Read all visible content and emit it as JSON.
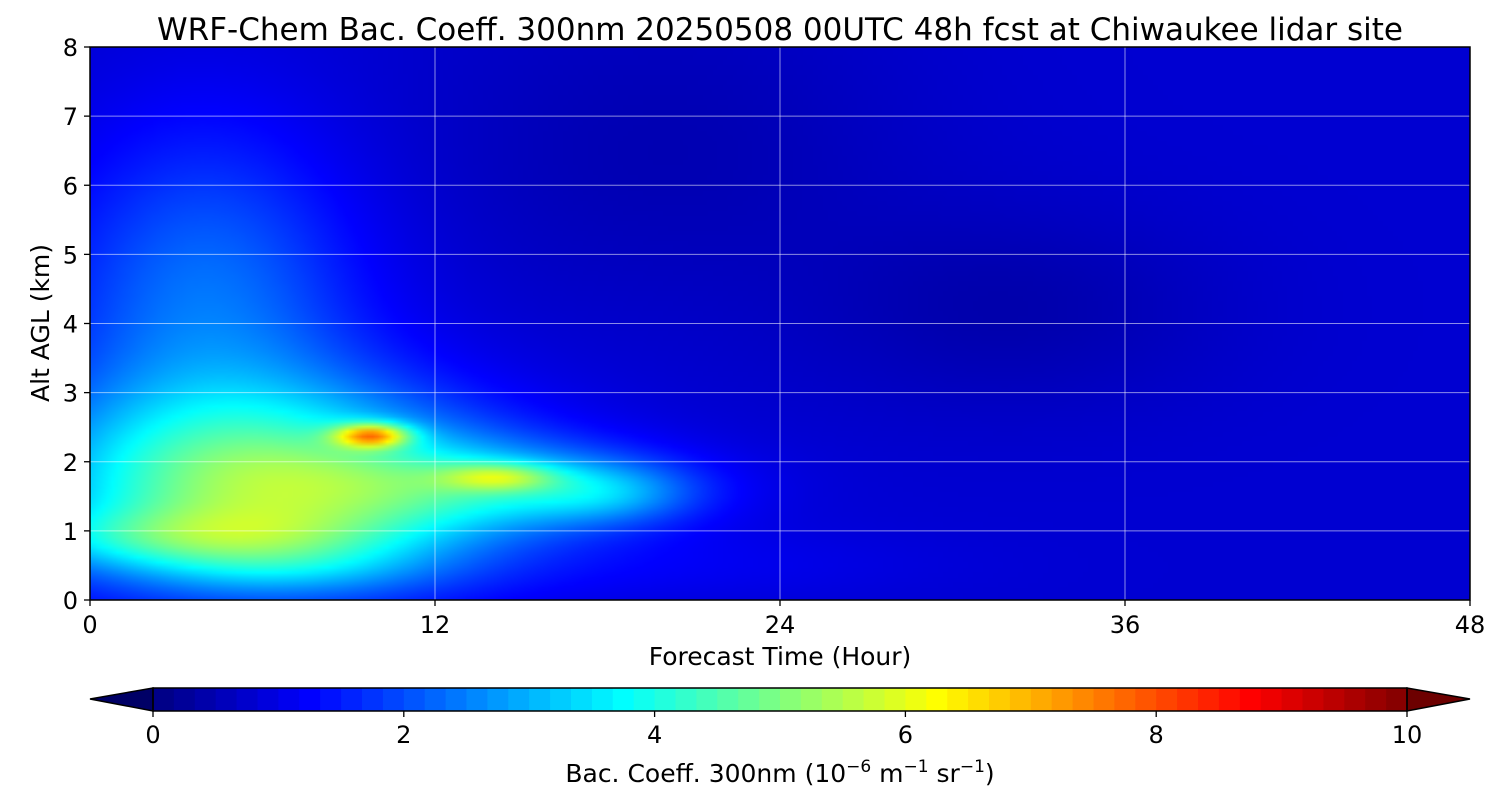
{
  "chart_data": {
    "type": "heatmap",
    "title": "WRF-Chem Bac. Coeff. 300nm  20250508 00UTC 48h fcst at Chiwaukee lidar site",
    "xlabel": "Forecast Time (Hour)",
    "ylabel": "Alt AGL (km)",
    "xlim": [
      0,
      48
    ],
    "ylim": [
      0,
      8
    ],
    "xticks": [
      "0",
      "12",
      "24",
      "36",
      "48"
    ],
    "yticks": [
      "0",
      "1",
      "2",
      "3",
      "4",
      "5",
      "6",
      "7",
      "8"
    ],
    "grid": true,
    "colormap": "jet",
    "background_value": 0.8,
    "colorbar": {
      "label_main": "Bac. Coeff. 300nm  (10",
      "label_exp1": "−6",
      "label_mid": " m",
      "label_exp2": "−1",
      "label_tail": " sr",
      "label_exp3": "−1",
      "label_close": ")",
      "range": [
        0,
        10
      ],
      "ticks": [
        "0",
        "2",
        "4",
        "6",
        "8",
        "10"
      ],
      "extend": "both"
    },
    "features": [
      {
        "t": 9.8,
        "z": 2.38,
        "sx": 0.9,
        "sz": 0.12,
        "value": 4.0
      },
      {
        "t": 14.2,
        "z": 1.78,
        "sx": 1.4,
        "sz": 0.14,
        "value": 2.0
      },
      {
        "t": 6.0,
        "z": 1.6,
        "sx": 5.5,
        "sz": 1.0,
        "value": 4.0
      },
      {
        "t": 14.0,
        "z": 1.65,
        "sx": 4.5,
        "sz": 0.45,
        "value": 1.8
      },
      {
        "t": 18.0,
        "z": 1.55,
        "sx": 2.2,
        "sz": 0.3,
        "value": 1.2
      },
      {
        "t": 3.5,
        "z": 0.9,
        "sx": 4.5,
        "sz": 0.3,
        "value": 1.5
      },
      {
        "t": 4.0,
        "z": 3.8,
        "sx": 4.0,
        "sz": 1.5,
        "value": 1.2
      },
      {
        "t": 7.0,
        "z": 0.45,
        "sx": 3.5,
        "sz": 0.25,
        "value": 0.6
      },
      {
        "t": 4.0,
        "z": 5.5,
        "sx": 3.5,
        "sz": 1.5,
        "value": 0.6
      },
      {
        "t": 20.0,
        "z": 0.5,
        "sx": 6.0,
        "sz": 0.4,
        "value": 0.3
      },
      {
        "t": 32.0,
        "z": 4.2,
        "sx": 5.0,
        "sz": 1.0,
        "value": -0.35
      },
      {
        "t": 20.0,
        "z": 6.5,
        "sx": 6.0,
        "sz": 1.5,
        "value": -0.3
      }
    ]
  }
}
